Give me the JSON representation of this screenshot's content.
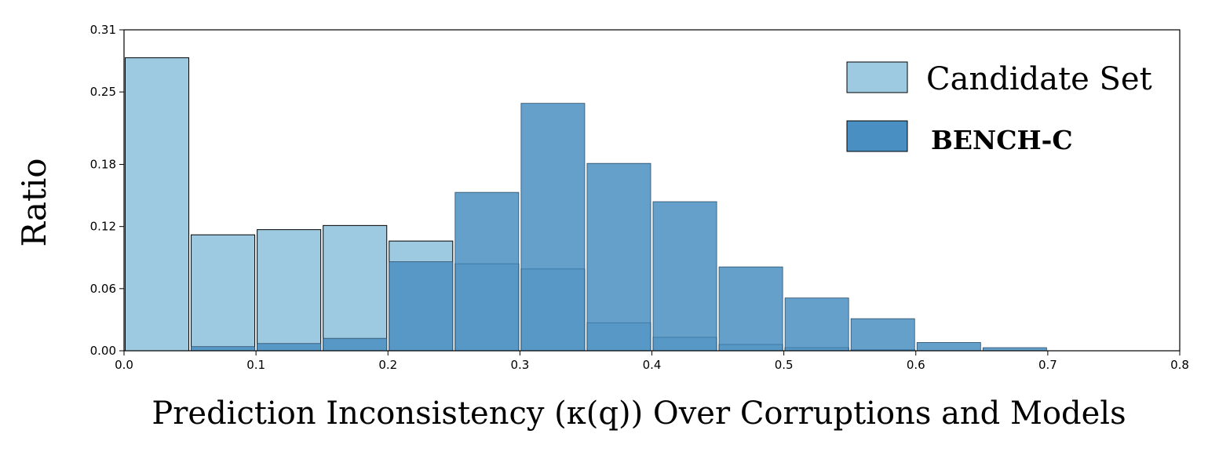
{
  "chart_data": {
    "type": "bar",
    "title": "",
    "xlabel": "Prediction Inconsistency (κ(q)) Over Corruptions and Models",
    "ylabel": "Ratio",
    "xlim": [
      0.0,
      0.8
    ],
    "ylim": [
      0.0,
      0.31
    ],
    "x_ticks": [
      "0.0",
      "0.1",
      "0.2",
      "0.3",
      "0.4",
      "0.5",
      "0.6",
      "0.7",
      "0.8"
    ],
    "y_ticks": [
      "0.00",
      "0.06",
      "0.12",
      "0.18",
      "0.25",
      "0.31"
    ],
    "grid": false,
    "legend_position": "top-right",
    "bin_width": 0.05,
    "bin_starts": [
      0.0,
      0.05,
      0.1,
      0.15,
      0.2,
      0.25,
      0.3,
      0.35,
      0.4,
      0.45,
      0.5,
      0.55,
      0.6,
      0.65
    ],
    "series": [
      {
        "name": "Candidate Set",
        "color": "#9ecae1",
        "values": [
          0.283,
          0.112,
          0.117,
          0.121,
          0.106,
          0.084,
          0.079,
          0.027,
          0.013,
          0.006,
          0.003,
          0.001,
          0.0,
          0.0
        ]
      },
      {
        "name": "BENCH-C",
        "color": "#4a8fc2",
        "values": [
          0.0,
          0.004,
          0.007,
          0.012,
          0.086,
          0.153,
          0.239,
          0.181,
          0.144,
          0.081,
          0.051,
          0.031,
          0.008,
          0.003
        ]
      }
    ]
  }
}
